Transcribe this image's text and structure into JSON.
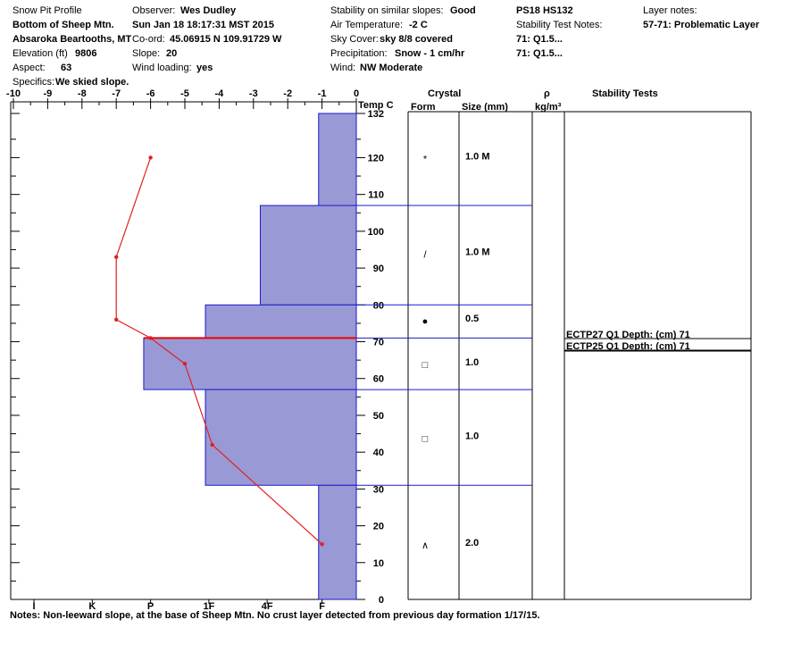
{
  "header": {
    "title": "Snow Pit Profile",
    "location": "Bottom of Sheep Mtn.",
    "region": "Absaroka Beartooths, MT",
    "elevation_label": "Elevation (ft)",
    "elevation_value": "9806",
    "aspect_label": "Aspect:",
    "aspect_value": "63",
    "specifics_label": "Specifics:",
    "specifics_value": "We skied slope.",
    "observer_label": "Observer:",
    "observer_value": "Wes Dudley",
    "datetime": "Sun Jan 18 18:17:31 MST 2015",
    "coord_label": "Co-ord:",
    "coord_value": "45.06915 N 109.91729 W",
    "slope_label": "Slope:",
    "slope_value": "20",
    "wind_loading_label": "Wind loading:",
    "wind_loading_value": "yes",
    "stability_label": "Stability on similar slopes:",
    "stability_value": "Good",
    "air_temp_label": "Air Temperature:",
    "air_temp_value": "-2 C",
    "sky_label": "Sky Cover:",
    "sky_value": "sky 8/8 covered",
    "precip_label": "Precipitation:",
    "precip_value": "Snow - 1 cm/hr",
    "wind_label": "Wind:",
    "wind_value": "NW Moderate",
    "ps_hs": "PS18 HS132",
    "stability_notes_label": "Stability Test Notes:",
    "stability_notes": [
      "71: Q1.5...",
      "71: Q1.5..."
    ],
    "layer_notes_label": "Layer notes:",
    "layer_notes_value": "57-71: Problematic Layer"
  },
  "columns": {
    "temp": "Temp C",
    "crystal": "Crystal",
    "form": "Form",
    "size": "Size (mm)",
    "rho": "ρ",
    "rho_unit": "kg/m³",
    "stability": "Stability Tests"
  },
  "stability_tests": [
    "ECTP27 Q1 Depth: (cm) 71",
    "ECTP25 Q1 Depth: (cm) 71"
  ],
  "notes": "Notes:  Non-leeward slope, at the base of Sheep Mtn. No crust layer detected from previous day formation 1/17/15.",
  "chart_data": {
    "type": "area",
    "temp_axis": {
      "ticks": [
        -10,
        -9,
        -8,
        -7,
        -6,
        -5,
        -4,
        -3,
        -2,
        -1,
        0
      ],
      "range": [
        -10,
        0
      ]
    },
    "height_axis": {
      "ticks": [
        0,
        10,
        20,
        30,
        40,
        50,
        60,
        70,
        80,
        90,
        100,
        110,
        120,
        132
      ],
      "range": [
        0,
        132
      ]
    },
    "hardness_axis": {
      "labels": [
        "I",
        "K",
        "P",
        "1F",
        "4F",
        "F"
      ]
    },
    "temperature_profile": [
      {
        "height": 120,
        "temp": -6
      },
      {
        "height": 93,
        "temp": -7
      },
      {
        "height": 76,
        "temp": -7
      },
      {
        "height": 71,
        "temp": -6
      },
      {
        "height": 64,
        "temp": -5
      },
      {
        "height": 42,
        "temp": -4.2
      },
      {
        "height": 15,
        "temp": -1
      }
    ],
    "layers": [
      {
        "bottom": 107,
        "top": 132,
        "hardness_temp": -1.1,
        "form": "*",
        "size": "1.0 M",
        "symbol_height": 120
      },
      {
        "bottom": 80,
        "top": 107,
        "hardness_temp": -2.8,
        "form": "/",
        "size": "1.0 M",
        "symbol_height": 94
      },
      {
        "bottom": 71,
        "top": 80,
        "hardness_temp": -4.4,
        "form": "●",
        "size": "0.5",
        "symbol_height": 76
      },
      {
        "bottom": 57,
        "top": 71,
        "hardness_temp": -6.2,
        "form": "□",
        "size": "1.0",
        "symbol_height": 64
      },
      {
        "bottom": 31,
        "top": 57,
        "hardness_temp": -4.4,
        "form": "□",
        "size": "1.0",
        "symbol_height": 44
      },
      {
        "bottom": 0,
        "top": 31,
        "hardness_temp": -1.1,
        "form": "∧",
        "size": "2.0",
        "symbol_height": 15
      }
    ],
    "problem_layer_height": 71,
    "colors": {
      "layer_fill": "#9999d6",
      "layer_stroke": "#1a1acc",
      "temp_line": "#e02020",
      "problem_line": "#ee0000"
    }
  }
}
